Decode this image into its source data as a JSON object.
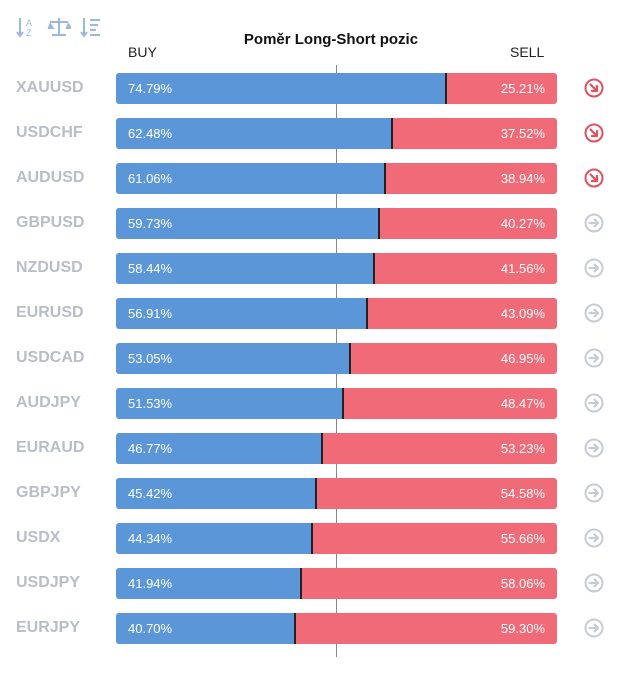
{
  "toolbar": {
    "icons": [
      "sort-az-icon",
      "balance-scale-icon",
      "sort-numeric-icon"
    ],
    "icon_color": "#9bb9e0"
  },
  "columns": {
    "buy_label": "BUY",
    "sell_label": "SELL"
  },
  "colors": {
    "buy": "#5b97d8",
    "sell": "#f06a78",
    "trend_down": "#e05260",
    "trend_neutral": "#c7cbd3"
  },
  "chart_data": {
    "type": "bar",
    "orientation": "horizontal",
    "stacked": true,
    "title": "Poměr Long-Short pozic",
    "categories": [
      "XAUUSD",
      "USDCHF",
      "AUDUSD",
      "GBPUSD",
      "NZDUSD",
      "EURUSD",
      "USDCAD",
      "AUDJPY",
      "EURAUD",
      "GBPJPY",
      "USDX",
      "USDJPY",
      "EURJPY"
    ],
    "series": [
      {
        "name": "BUY",
        "values": [
          74.79,
          62.48,
          61.06,
          59.73,
          58.44,
          56.91,
          53.05,
          51.53,
          46.77,
          45.42,
          44.34,
          41.94,
          40.7
        ]
      },
      {
        "name": "SELL",
        "values": [
          25.21,
          37.52,
          38.94,
          40.27,
          41.56,
          43.09,
          46.95,
          48.47,
          53.23,
          54.58,
          55.66,
          58.06,
          59.3
        ]
      }
    ],
    "buy_labels": [
      "74.79%",
      "62.48%",
      "61.06%",
      "59.73%",
      "58.44%",
      "56.91%",
      "53.05%",
      "51.53%",
      "46.77%",
      "45.42%",
      "44.34%",
      "41.94%",
      "40.70%"
    ],
    "sell_labels": [
      "25.21%",
      "37.52%",
      "38.94%",
      "40.27%",
      "41.56%",
      "43.09%",
      "46.95%",
      "48.47%",
      "53.23%",
      "54.58%",
      "55.66%",
      "58.06%",
      "59.30%"
    ],
    "trend_icons": [
      "arrow-down-right-icon",
      "arrow-down-right-icon",
      "arrow-down-right-icon",
      "arrow-right-icon",
      "arrow-right-icon",
      "arrow-right-icon",
      "arrow-right-icon",
      "arrow-right-icon",
      "arrow-right-icon",
      "arrow-right-icon",
      "arrow-right-icon",
      "arrow-right-icon",
      "arrow-right-icon"
    ],
    "xlim": [
      0,
      100
    ],
    "reference_line": 50
  }
}
